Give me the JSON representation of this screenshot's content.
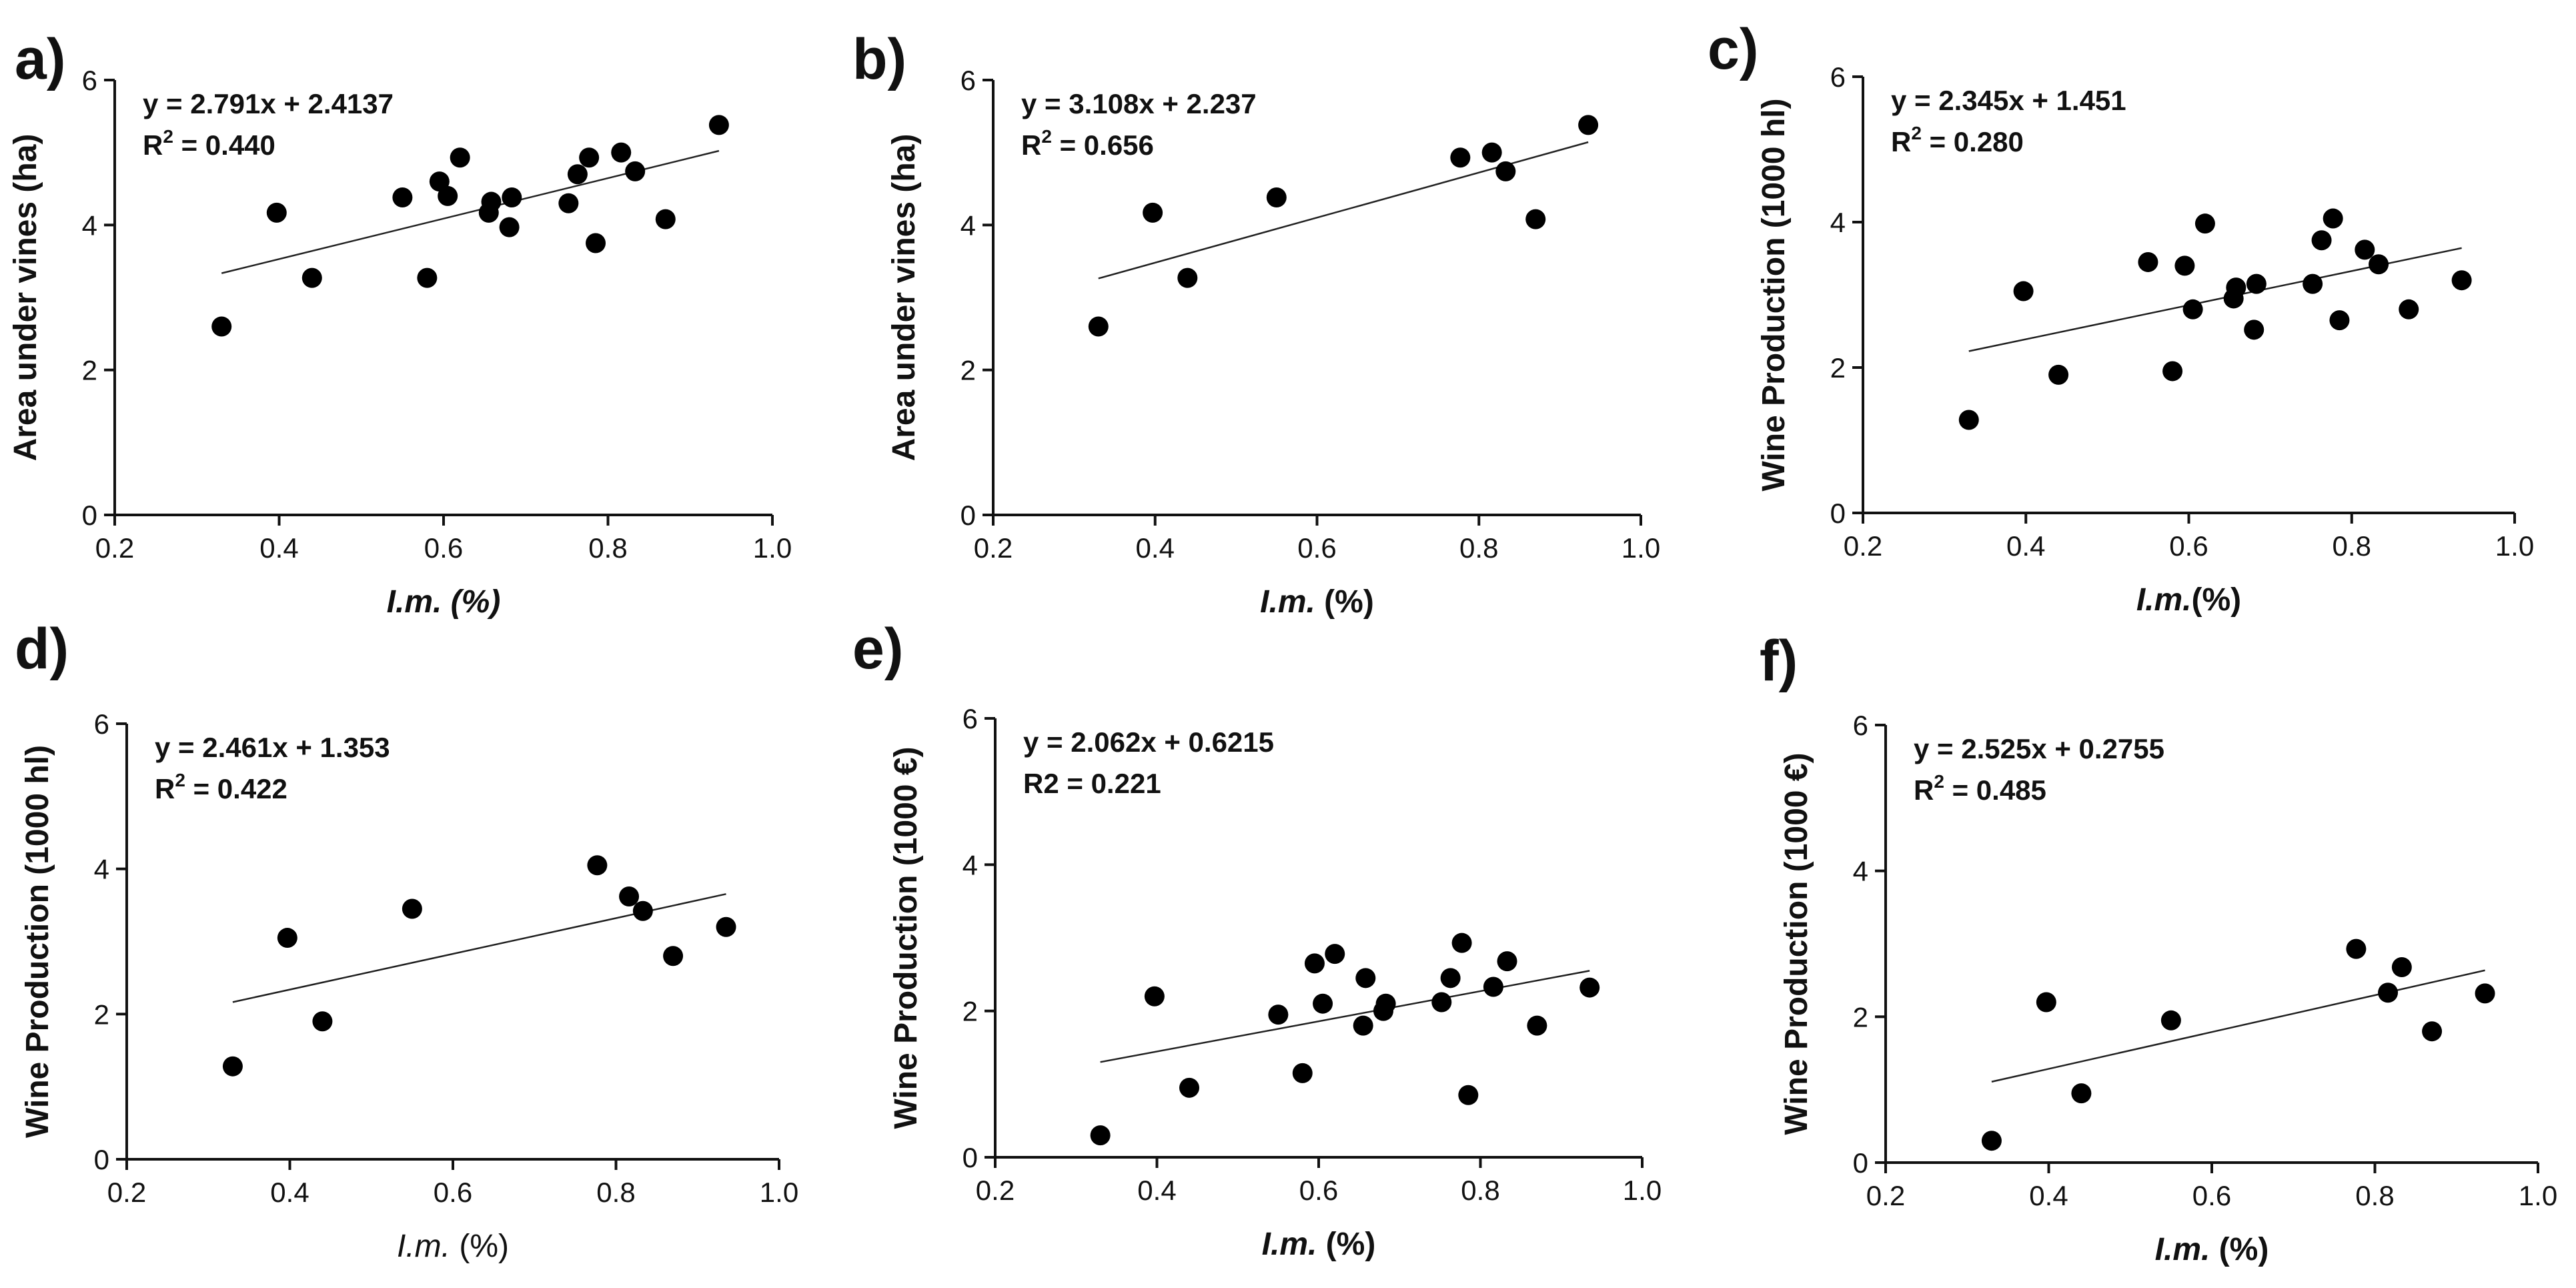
{
  "chart_data": [
    {
      "panel": "a)",
      "type": "scatter",
      "eq_line1": "y = 2.791x + 2.4137",
      "eq_r_prefix": "R",
      "eq_r_sup": "2",
      "eq_r_value": " = 0.440",
      "ylabel": "Area under vines (ha)",
      "xlabel_italic": "I.m. (%)",
      "xlabel_rest": "",
      "xlabel_bold": true,
      "xlim": [
        0.2,
        1.0
      ],
      "ylim": [
        0,
        6
      ],
      "xticks": [
        "0.2",
        "0.4",
        "0.6",
        "0.8",
        "1.0"
      ],
      "yticks": [
        "0",
        "2",
        "4",
        "6"
      ],
      "x": [
        0.33,
        0.397,
        0.44,
        0.55,
        0.58,
        0.595,
        0.605,
        0.62,
        0.655,
        0.658,
        0.68,
        0.683,
        0.752,
        0.763,
        0.777,
        0.785,
        0.816,
        0.833,
        0.87,
        0.935
      ],
      "y": [
        2.6,
        4.17,
        3.27,
        4.38,
        3.27,
        4.6,
        4.4,
        4.93,
        4.17,
        4.32,
        3.97,
        4.38,
        4.3,
        4.7,
        4.93,
        3.75,
        5.0,
        4.74,
        4.08,
        5.38
      ],
      "fit": {
        "slope": 2.791,
        "intercept": 2.4137,
        "x_range": [
          0.33,
          0.935
        ]
      }
    },
    {
      "panel": "b)",
      "type": "scatter",
      "eq_line1": "y = 3.108x + 2.237",
      "eq_r_prefix": "R",
      "eq_r_sup": "2",
      "eq_r_value": " = 0.656",
      "ylabel": "Area under vines (ha)",
      "xlabel_italic": "I.m.",
      "xlabel_rest": " (%)",
      "xlabel_bold": true,
      "xlim": [
        0.2,
        1.0
      ],
      "ylim": [
        0,
        6
      ],
      "xticks": [
        "0.2",
        "0.4",
        "0.6",
        "0.8",
        "1.0"
      ],
      "yticks": [
        "0",
        "2",
        "4",
        "6"
      ],
      "x": [
        0.33,
        0.397,
        0.44,
        0.55,
        0.777,
        0.816,
        0.833,
        0.87,
        0.935
      ],
      "y": [
        2.6,
        4.17,
        3.27,
        4.38,
        4.93,
        5.0,
        4.74,
        4.08,
        5.38
      ],
      "fit": {
        "slope": 3.108,
        "intercept": 2.237,
        "x_range": [
          0.33,
          0.935
        ]
      }
    },
    {
      "panel": "c)",
      "type": "scatter",
      "eq_line1": "y = 2.345x + 1.451",
      "eq_r_prefix": "R",
      "eq_r_sup": "2",
      "eq_r_value": " = 0.280",
      "ylabel": "Wine Production (1000 hl)",
      "xlabel_italic": "I.m.",
      "xlabel_rest": "(%)",
      "xlabel_bold": true,
      "xlim": [
        0.2,
        1.0
      ],
      "ylim": [
        0,
        6
      ],
      "xticks": [
        "0.2",
        "0.4",
        "0.6",
        "0.8",
        "1.0"
      ],
      "yticks": [
        "0",
        "2",
        "4",
        "6"
      ],
      "x": [
        0.33,
        0.397,
        0.44,
        0.55,
        0.58,
        0.595,
        0.605,
        0.62,
        0.655,
        0.658,
        0.68,
        0.683,
        0.752,
        0.763,
        0.777,
        0.785,
        0.816,
        0.833,
        0.87,
        0.935
      ],
      "y": [
        1.28,
        3.05,
        1.9,
        3.45,
        1.95,
        3.4,
        2.8,
        3.98,
        2.95,
        3.1,
        2.52,
        3.15,
        3.15,
        3.75,
        4.05,
        2.65,
        3.62,
        3.42,
        2.8,
        3.2
      ],
      "fit": {
        "slope": 2.345,
        "intercept": 1.451,
        "x_range": [
          0.33,
          0.935
        ]
      }
    },
    {
      "panel": "d)",
      "type": "scatter",
      "eq_line1": "y = 2.461x + 1.353",
      "eq_r_prefix": "R",
      "eq_r_sup": "2",
      "eq_r_value": " = 0.422",
      "ylabel": "Wine Production (1000 hl)",
      "xlabel_italic": "I.m.",
      "xlabel_rest": " (%)",
      "xlabel_bold": false,
      "xlim": [
        0.2,
        1.0
      ],
      "ylim": [
        0,
        6
      ],
      "xticks": [
        "0.2",
        "0.4",
        "0.6",
        "0.8",
        "1.0"
      ],
      "yticks": [
        "0",
        "2",
        "4",
        "6"
      ],
      "x": [
        0.33,
        0.397,
        0.44,
        0.55,
        0.777,
        0.816,
        0.833,
        0.87,
        0.935
      ],
      "y": [
        1.28,
        3.05,
        1.9,
        3.45,
        4.05,
        3.62,
        3.42,
        2.8,
        3.2
      ],
      "fit": {
        "slope": 2.461,
        "intercept": 1.353,
        "x_range": [
          0.33,
          0.935
        ]
      }
    },
    {
      "panel": "e)",
      "type": "scatter",
      "eq_line1": "y = 2.062x + 0.6215",
      "eq_r_prefix": "R2",
      "eq_r_sup": "",
      "eq_r_value": " = 0.221",
      "ylabel": "Wine Production (1000 €)",
      "xlabel_italic": "I.m.",
      "xlabel_rest": " (%)",
      "xlabel_bold": true,
      "xlim": [
        0.2,
        1.0
      ],
      "ylim": [
        0,
        6
      ],
      "xticks": [
        "0.2",
        "0.4",
        "0.6",
        "0.8",
        "1.0"
      ],
      "yticks": [
        "0",
        "2",
        "4",
        "6"
      ],
      "x": [
        0.33,
        0.397,
        0.44,
        0.55,
        0.58,
        0.595,
        0.605,
        0.62,
        0.655,
        0.658,
        0.68,
        0.683,
        0.752,
        0.763,
        0.777,
        0.785,
        0.816,
        0.833,
        0.87,
        0.935
      ],
      "y": [
        0.3,
        2.2,
        0.95,
        1.95,
        1.15,
        2.65,
        2.1,
        2.78,
        1.8,
        2.45,
        2.0,
        2.1,
        2.12,
        2.45,
        2.93,
        0.85,
        2.33,
        2.68,
        1.8,
        2.32
      ],
      "fit": {
        "slope": 2.062,
        "intercept": 0.6215,
        "x_range": [
          0.33,
          0.935
        ]
      }
    },
    {
      "panel": "f)",
      "type": "scatter",
      "eq_line1": "y = 2.525x + 0.2755",
      "eq_r_prefix": "R",
      "eq_r_sup": "2",
      "eq_r_value": " = 0.485",
      "ylabel": "Wine Production (1000 €)",
      "xlabel_italic": "I.m.",
      "xlabel_rest": " (%)",
      "xlabel_bold": true,
      "xlim": [
        0.2,
        1.0
      ],
      "ylim": [
        0,
        6
      ],
      "xticks": [
        "0.2",
        "0.4",
        "0.6",
        "0.8",
        "1.0"
      ],
      "yticks": [
        "0",
        "2",
        "4",
        "6"
      ],
      "x": [
        0.33,
        0.397,
        0.44,
        0.55,
        0.777,
        0.816,
        0.833,
        0.87,
        0.935
      ],
      "y": [
        0.3,
        2.2,
        0.95,
        1.95,
        2.93,
        2.33,
        2.68,
        1.8,
        2.32
      ],
      "fit": {
        "slope": 2.525,
        "intercept": 0.2755,
        "x_range": [
          0.33,
          0.935
        ]
      }
    }
  ]
}
